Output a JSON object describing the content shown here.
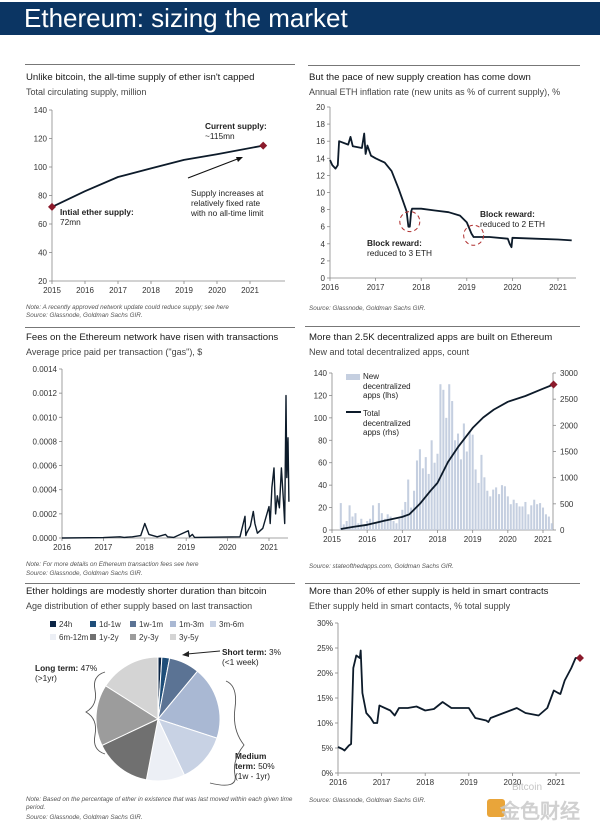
{
  "header": {
    "title": "Ethereum: sizing the market",
    "bg": "#0b3563"
  },
  "watermark": {
    "text": "金色财经",
    "sub": "Bitcoin"
  },
  "colors": {
    "line": "#0d1b2a",
    "marker": "#8b1a2b",
    "bar": "#c5cfe0"
  },
  "chart_data": [
    {
      "id": "supply",
      "type": "line",
      "title": "Unlike bitcoin, the all-time supply of ether isn't capped",
      "subtitle": "Total circulating supply, million",
      "x": [
        2015,
        2016,
        2017,
        2018,
        2019,
        2020,
        2021.4
      ],
      "y": [
        72,
        83,
        93,
        99,
        105,
        109,
        115
      ],
      "ylim": [
        20,
        140
      ],
      "yticks": [
        20,
        40,
        60,
        80,
        100,
        120,
        140
      ],
      "ytick_labels": [
        "20",
        "40",
        "60",
        "80",
        "100",
        "120",
        "140"
      ],
      "xticks": [
        2015,
        2016,
        2017,
        2018,
        2019,
        2020,
        2021
      ],
      "xtick_labels": [
        "2015",
        "2016",
        "2017",
        "2018",
        "2019",
        "2020",
        "2021"
      ],
      "annotations": {
        "start_bold": "Intial ether supply:",
        "start_value": "72mn",
        "end_bold": "Current supply:",
        "end_value": "~115mn",
        "arrow_text": "Supply increases at relatively fixed rate with no all-time limit"
      },
      "note": "Note: A recently approved network update could reduce supply; see here",
      "source": "Source: Glassnode, Goldman Sachs GIR."
    },
    {
      "id": "inflation",
      "type": "line",
      "title": "But the pace of new supply creation has come down",
      "subtitle": "Annual ETH inflation rate (new units as % of current supply), %",
      "x": [
        2016,
        2016.05,
        2016.12,
        2016.17,
        2016.2,
        2016.4,
        2016.45,
        2016.5,
        2016.7,
        2016.75,
        2016.78,
        2016.82,
        2016.9,
        2017,
        2017.2,
        2017.35,
        2017.5,
        2017.6,
        2017.68,
        2017.72,
        2017.75,
        2017.78,
        2017.8,
        2018,
        2018.3,
        2018.6,
        2018.85,
        2019,
        2019.1,
        2019.15,
        2019.5,
        2019.9,
        2019.94,
        2019.98,
        2020,
        2020.5,
        2021,
        2021.3
      ],
      "y": [
        13.8,
        13.2,
        12.8,
        13.2,
        16,
        15.6,
        16.5,
        15.4,
        15.2,
        16.9,
        14.5,
        15.5,
        14.3,
        14,
        13.5,
        12.5,
        10.5,
        9,
        7.8,
        6.0,
        6.0,
        7.8,
        8.1,
        8.1,
        7.9,
        7.7,
        7.3,
        6.5,
        5.2,
        4.8,
        4.8,
        4.6,
        4.0,
        3.6,
        4.7,
        4.6,
        4.5,
        4.4
      ],
      "ylim": [
        0,
        20
      ],
      "yticks": [
        0,
        2,
        4,
        6,
        8,
        10,
        12,
        14,
        16,
        18,
        20
      ],
      "ytick_labels": [
        "0",
        "2",
        "4",
        "6",
        "8",
        "10",
        "12",
        "14",
        "16",
        "18",
        "20"
      ],
      "xticks": [
        2016,
        2017,
        2018,
        2019,
        2020,
        2021
      ],
      "xtick_labels": [
        "2016",
        "2017",
        "2018",
        "2019",
        "2020",
        "2021"
      ],
      "annotations": {
        "reward3_bold": "Block reward:",
        "reward3_value": "reduced to 3 ETH",
        "reward2_bold": "Block reward:",
        "reward2_value": "reduced to 2 ETH"
      },
      "source": "Source: Glassnode, Goldman Sachs GIR."
    },
    {
      "id": "fees",
      "type": "line",
      "title": "Fees on the Ethereum network have risen with transactions",
      "subtitle": "Average price paid per transaction (\"gas\"), $",
      "x": [
        2016,
        2017,
        2017.4,
        2017.5,
        2017.7,
        2017.9,
        2018,
        2018.1,
        2018.3,
        2018.5,
        2018.55,
        2018.7,
        2019.05,
        2019.08,
        2019.15,
        2019.2,
        2020.3,
        2020.42,
        2020.44,
        2020.46,
        2020.55,
        2020.62,
        2020.66,
        2020.72,
        2020.85,
        2021,
        2021.03,
        2021.07,
        2021.12,
        2021.16,
        2021.2,
        2021.25,
        2021.3,
        2021.35,
        2021.38,
        2021.41,
        2021.43,
        2021.46,
        2021.48
      ],
      "y": [
        0,
        3e-06,
        1e-05,
        5e-06,
        1e-05,
        2e-05,
        0.00012,
        3e-05,
        1e-05,
        3e-05,
        1e-05,
        5e-06,
        6e-05,
        1e-05,
        3e-05,
        5e-06,
        1e-05,
        0.00018,
        2e-05,
        4e-05,
        0.0001,
        0.00022,
        0.00012,
        4e-05,
        8e-05,
        0.00026,
        0.00012,
        0.00042,
        0.00058,
        0.0002,
        0.00035,
        0.00025,
        0.00058,
        0.0003,
        0.00012,
        0.00118,
        0.0005,
        0.00083,
        0.0003
      ],
      "ylim": [
        0,
        0.0014
      ],
      "yticks": [
        0,
        0.0002,
        0.0004,
        0.0006,
        0.0008,
        0.001,
        0.0012,
        0.0014
      ],
      "ytick_labels": [
        "0.0000",
        "0.0002",
        "0.0004",
        "0.0006",
        "0.0008",
        "0.0010",
        "0.0012",
        "0.0014"
      ],
      "xticks": [
        2016,
        2017,
        2018,
        2019,
        2020,
        2021
      ],
      "xtick_labels": [
        "2016",
        "2017",
        "2018",
        "2019",
        "2020",
        "2021"
      ],
      "note": "Note: For more details on Ethereum transaction fees see here",
      "source": "Source: Glassnode, Goldman Sachs GIR."
    },
    {
      "id": "dapps",
      "type": "bar+line",
      "title": "More than 2.5K decentralized apps are built on Ethereum",
      "subtitle": "New and total decentralized apps, count",
      "bars": {
        "name": "New decentralized apps (lhs)",
        "start": 2015.25,
        "step_months": 1,
        "values": [
          24,
          5,
          8,
          22,
          12,
          15,
          6,
          10,
          5,
          8,
          10,
          22,
          6,
          24,
          15,
          10,
          14,
          12,
          8,
          6,
          10,
          18,
          25,
          45,
          20,
          35,
          62,
          72,
          55,
          65,
          50,
          80,
          60,
          68,
          130,
          125,
          100,
          130,
          115,
          80,
          86,
          63,
          95,
          70,
          88,
          85,
          54,
          42,
          67,
          47,
          35,
          30,
          36,
          38,
          32,
          40,
          39,
          30,
          23,
          27,
          24,
          21,
          21,
          25,
          14,
          22,
          27,
          23,
          24,
          20,
          14,
          12,
          6
        ]
      },
      "line": {
        "name": "Total decentralized apps (rhs)",
        "x": [
          2015.25,
          2015.6,
          2016,
          2016.5,
          2017,
          2017.2,
          2017.5,
          2017.8,
          2018,
          2018.3,
          2018.6,
          2019,
          2019.3,
          2019.6,
          2020,
          2020.5,
          2021,
          2021.3
        ],
        "y": [
          20,
          60,
          100,
          180,
          250,
          300,
          500,
          750,
          900,
          1300,
          1600,
          1950,
          2150,
          2300,
          2450,
          2560,
          2700,
          2780
        ]
      },
      "ylim": [
        0,
        140
      ],
      "y2lim": [
        0,
        3000
      ],
      "yticks": [
        0,
        20,
        40,
        60,
        80,
        100,
        120,
        140
      ],
      "ytick_labels": [
        "0",
        "20",
        "40",
        "60",
        "80",
        "100",
        "120",
        "140"
      ],
      "y2ticks": [
        0,
        500,
        1000,
        1500,
        2000,
        2500,
        3000
      ],
      "y2tick_labels": [
        "0",
        "500",
        "1000",
        "1500",
        "2000",
        "2500",
        "3000"
      ],
      "xticks": [
        2015,
        2016,
        2017,
        2018,
        2019,
        2020,
        2021
      ],
      "xtick_labels": [
        "2015",
        "2016",
        "2017",
        "2018",
        "2019",
        "2020",
        "2021"
      ],
      "legend": [
        "New decentralized apps (lhs)",
        "Total decentralized apps (rhs)"
      ],
      "source": "Source: stateofthedapps.com, Goldman Sachs GIR."
    },
    {
      "id": "age",
      "type": "pie",
      "title": "Ether holdings are modestly shorter duration than bitcoin",
      "subtitle": "Age distribution of ether supply based on last transaction",
      "slices": [
        {
          "label": "24h",
          "value": 1,
          "color": "#0b2545"
        },
        {
          "label": "1d-1w",
          "value": 2,
          "color": "#1f4e79"
        },
        {
          "label": "1w-1m",
          "value": 8,
          "color": "#5b7394"
        },
        {
          "label": "1m-3m",
          "value": 19,
          "color": "#a9b8d3"
        },
        {
          "label": "3m-6m",
          "value": 13,
          "color": "#c8d2e4"
        },
        {
          "label": "6m-12m",
          "value": 10,
          "color": "#eceff5"
        },
        {
          "label": "1y-2y",
          "value": 15,
          "color": "#707070"
        },
        {
          "label": "2y-3y",
          "value": 16,
          "color": "#9c9c9c"
        },
        {
          "label": "3y-5y",
          "value": 16,
          "color": "#d4d4d4"
        }
      ],
      "annotations": {
        "short_bold": "Short term:",
        "short_value": "3%",
        "short_sub": "(<1 week)",
        "long_bold": "Long term:",
        "long_value": "47%",
        "long_sub": "(>1yr)",
        "medium_bold1": "Medium",
        "medium_bold2": "term:",
        "medium_value": "50%",
        "medium_sub": "(1w - 1yr)"
      },
      "note": "Note: Based on the percentage of ether in existence that was last moved within each given time period.",
      "source": "Source: Glassnode, Goldman Sachs GIR."
    },
    {
      "id": "contracts",
      "type": "line",
      "title": "More than 20% of ether supply is held in smart contracts",
      "subtitle": "Ether supply held in smart contacts, % total supply",
      "x": [
        2016,
        2016.1,
        2016.15,
        2016.25,
        2016.3,
        2016.35,
        2016.42,
        2016.5,
        2016.52,
        2016.56,
        2016.65,
        2016.75,
        2016.82,
        2016.9,
        2016.95,
        2017.2,
        2017.3,
        2017.4,
        2017.6,
        2017.8,
        2018,
        2018.2,
        2018.4,
        2018.6,
        2019,
        2019.15,
        2019.4,
        2019.45,
        2019.5,
        2019.8,
        2020.1,
        2020.3,
        2020.6,
        2020.8,
        2020.95,
        2021.05,
        2021.1,
        2021.2,
        2021.35,
        2021.45,
        2021.55
      ],
      "y": [
        5.2,
        4.8,
        4.5,
        5.5,
        5.8,
        21,
        23.5,
        23,
        24.5,
        16,
        12,
        11,
        10,
        10,
        13.5,
        12.5,
        11.5,
        13,
        13,
        13.3,
        12.5,
        12.8,
        14.2,
        13,
        13,
        11,
        10.5,
        10.2,
        11,
        12,
        13,
        12,
        11.5,
        13,
        16.5,
        16,
        15.8,
        18.5,
        21,
        23,
        23
      ],
      "ylim": [
        0,
        30
      ],
      "yticks": [
        0,
        5,
        10,
        15,
        20,
        25,
        30
      ],
      "ytick_labels": [
        "0%",
        "5%",
        "10%",
        "15%",
        "20%",
        "25%",
        "30%"
      ],
      "xticks": [
        2016,
        2017,
        2018,
        2019,
        2020,
        2021
      ],
      "xtick_labels": [
        "2016",
        "2017",
        "2018",
        "2019",
        "2020",
        "2021"
      ],
      "source": "Source: Glassnode, Goldman Sachs GIR."
    }
  ]
}
